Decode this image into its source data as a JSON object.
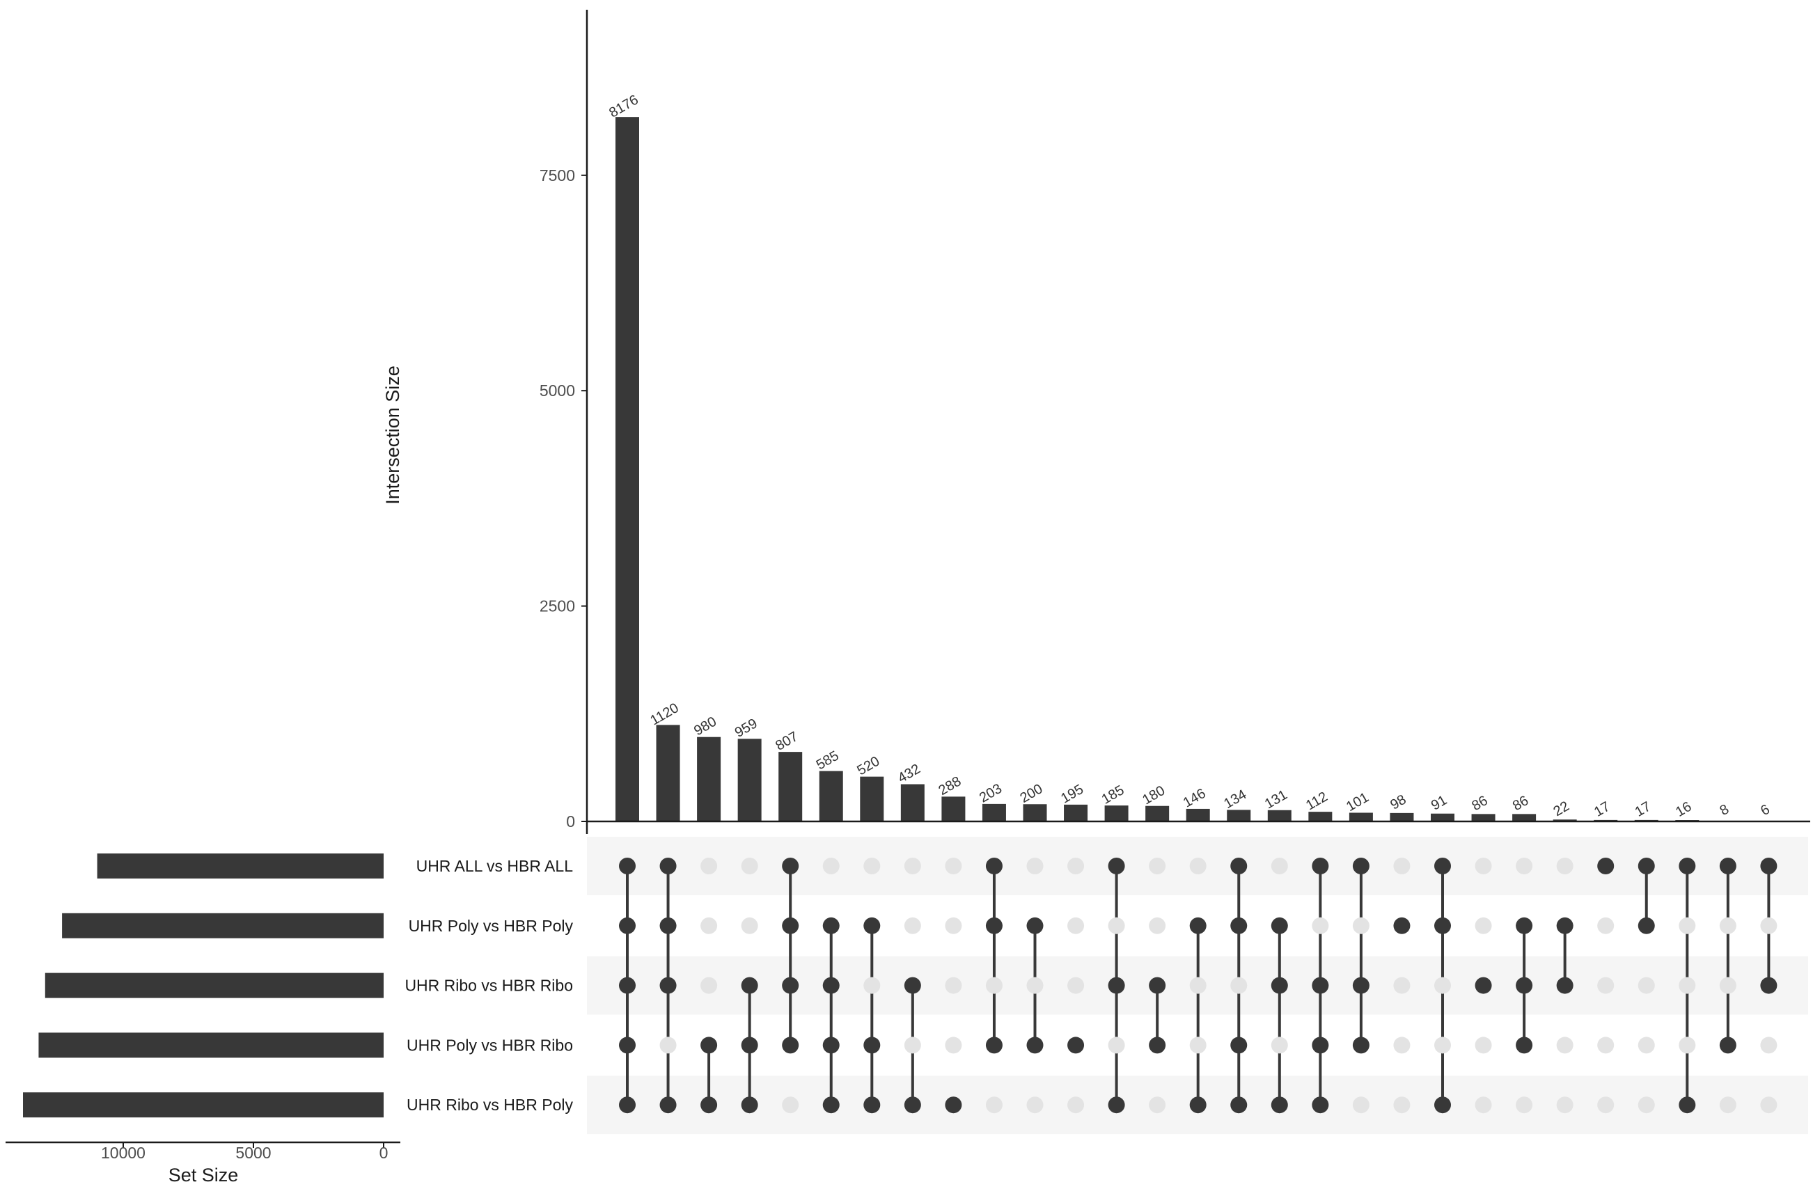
{
  "chart_data": {
    "type": "upset",
    "sets": [
      "UHR ALL  vs HBR ALL",
      "UHR Poly vs HBR Poly",
      "UHR Ribo vs HBR Ribo",
      "UHR Poly vs HBR Ribo",
      "UHR Ribo vs HBR Poly"
    ],
    "set_sizes": [
      11000,
      12350,
      13000,
      13250,
      13850
    ],
    "intersections": [
      {
        "size": 8176,
        "members": [
          0,
          1,
          2,
          3,
          4
        ]
      },
      {
        "size": 1120,
        "members": [
          0,
          1,
          2,
          4
        ]
      },
      {
        "size": 980,
        "members": [
          3,
          4
        ]
      },
      {
        "size": 959,
        "members": [
          2,
          3,
          4
        ]
      },
      {
        "size": 807,
        "members": [
          0,
          1,
          2,
          3
        ]
      },
      {
        "size": 585,
        "members": [
          1,
          2,
          3,
          4
        ]
      },
      {
        "size": 520,
        "members": [
          1,
          3,
          4
        ]
      },
      {
        "size": 432,
        "members": [
          2,
          4
        ]
      },
      {
        "size": 288,
        "members": [
          4
        ]
      },
      {
        "size": 203,
        "members": [
          0,
          1,
          3
        ]
      },
      {
        "size": 200,
        "members": [
          1,
          3
        ]
      },
      {
        "size": 195,
        "members": [
          3
        ]
      },
      {
        "size": 185,
        "members": [
          0,
          2,
          4
        ]
      },
      {
        "size": 180,
        "members": [
          2,
          3
        ]
      },
      {
        "size": 146,
        "members": [
          1,
          4
        ]
      },
      {
        "size": 134,
        "members": [
          0,
          1,
          3,
          4
        ]
      },
      {
        "size": 131,
        "members": [
          1,
          2,
          4
        ]
      },
      {
        "size": 112,
        "members": [
          0,
          2,
          3,
          4
        ]
      },
      {
        "size": 101,
        "members": [
          0,
          2,
          3
        ]
      },
      {
        "size": 98,
        "members": [
          1
        ]
      },
      {
        "size": 91,
        "members": [
          0,
          1,
          4
        ]
      },
      {
        "size": 86,
        "members": [
          2
        ]
      },
      {
        "size": 86,
        "members": [
          1,
          2,
          3
        ]
      },
      {
        "size": 22,
        "members": [
          1,
          2
        ]
      },
      {
        "size": 17,
        "members": [
          0
        ]
      },
      {
        "size": 17,
        "members": [
          0,
          1
        ]
      },
      {
        "size": 16,
        "members": [
          0,
          4
        ]
      },
      {
        "size": 8,
        "members": [
          0,
          3
        ]
      },
      {
        "size": 6,
        "members": [
          0,
          2
        ]
      }
    ],
    "intersection_axis": {
      "label": "Intersection Size",
      "ticks": [
        0,
        2500,
        5000,
        7500
      ],
      "ylim": [
        0,
        9500
      ]
    },
    "set_size_axis": {
      "label": "Set Size",
      "ticks": [
        10000,
        5000,
        0
      ],
      "xlim": [
        14100,
        0
      ]
    },
    "colors": {
      "bar": "#383838",
      "dot_active": "#383838",
      "dot_inactive": "#e3e3e3",
      "row_band": "#f5f5f5",
      "axis": "#1a1a1a"
    }
  }
}
